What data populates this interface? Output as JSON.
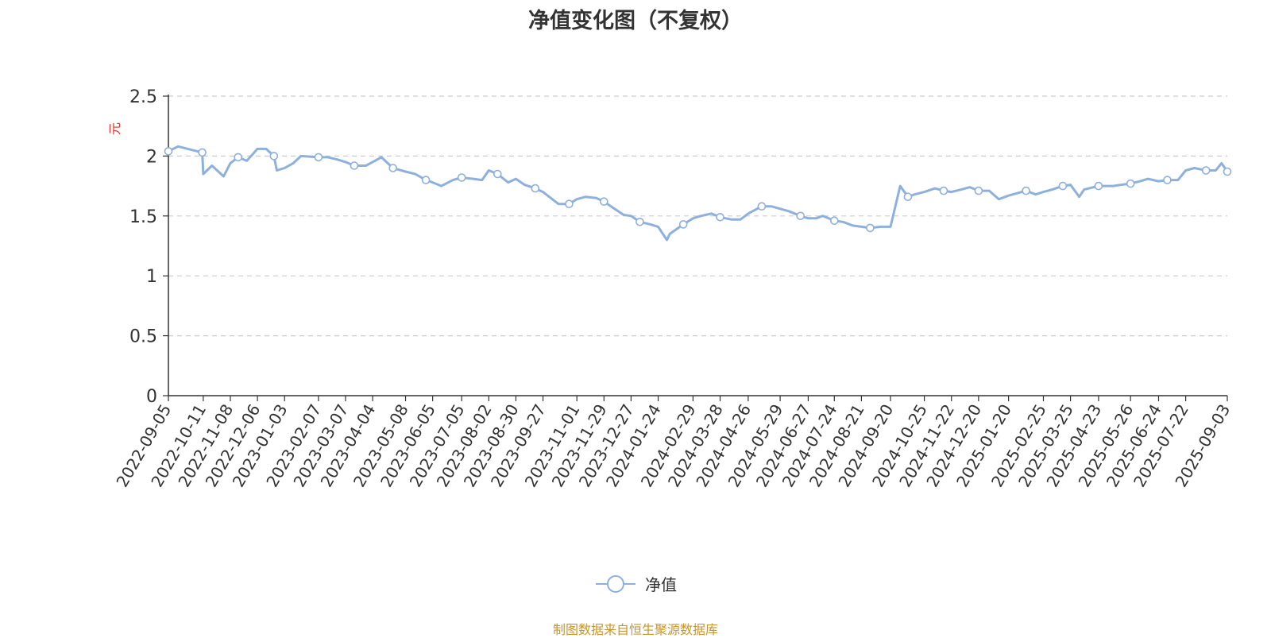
{
  "chart_data": {
    "type": "line",
    "title": "净值变化图（不复权）",
    "ylabel": "元",
    "xlabel": "",
    "ylim": [
      0,
      2.5
    ],
    "yticks": [
      "0",
      "0.5",
      "1",
      "1.5",
      "2",
      "2.5"
    ],
    "grid": "horizontal dashed",
    "legend_position": "bottom",
    "x_tick_labels": [
      "2022-09-05",
      "2022-10-11",
      "2022-11-08",
      "2022-12-06",
      "2023-01-03",
      "2023-02-07",
      "2023-03-07",
      "2023-04-04",
      "2023-05-08",
      "2023-06-05",
      "2023-07-05",
      "2023-08-02",
      "2023-08-30",
      "2023-09-27",
      "2023-11-01",
      "2023-11-29",
      "2023-12-27",
      "2024-01-24",
      "2024-02-29",
      "2024-03-28",
      "2024-04-26",
      "2024-05-29",
      "2024-06-27",
      "2024-07-24",
      "2024-08-21",
      "2024-09-20",
      "2024-10-25",
      "2024-11-22",
      "2024-12-20",
      "2025-01-20",
      "2025-02-25",
      "2025-03-25",
      "2025-04-23",
      "2025-05-26",
      "2025-06-24",
      "2025-07-22",
      "2025-09-03"
    ],
    "series": [
      {
        "name": "净值",
        "color": "#8eb0dc",
        "x": [
          "2022-09-05",
          "2022-09-15",
          "2022-09-30",
          "2022-10-10",
          "2022-10-11",
          "2022-10-20",
          "2022-10-28",
          "2022-11-01",
          "2022-11-08",
          "2022-11-16",
          "2022-11-25",
          "2022-12-06",
          "2022-12-15",
          "2022-12-23",
          "2022-12-26",
          "2023-01-03",
          "2023-01-12",
          "2023-01-20",
          "2023-02-07",
          "2023-02-17",
          "2023-02-27",
          "2023-03-07",
          "2023-03-16",
          "2023-03-28",
          "2023-04-04",
          "2023-04-13",
          "2023-04-25",
          "2023-05-08",
          "2023-05-18",
          "2023-05-29",
          "2023-06-05",
          "2023-06-14",
          "2023-06-26",
          "2023-07-05",
          "2023-07-17",
          "2023-07-26",
          "2023-08-02",
          "2023-08-11",
          "2023-08-22",
          "2023-08-30",
          "2023-09-08",
          "2023-09-19",
          "2023-09-27",
          "2023-10-13",
          "2023-10-24",
          "2023-11-01",
          "2023-11-10",
          "2023-11-21",
          "2023-11-29",
          "2023-12-08",
          "2023-12-19",
          "2023-12-27",
          "2024-01-05",
          "2024-01-16",
          "2024-01-24",
          "2024-02-02",
          "2024-02-05",
          "2024-02-19",
          "2024-02-29",
          "2024-03-08",
          "2024-03-19",
          "2024-03-28",
          "2024-04-09",
          "2024-04-18",
          "2024-04-26",
          "2024-05-10",
          "2024-05-20",
          "2024-05-29",
          "2024-06-07",
          "2024-06-19",
          "2024-06-27",
          "2024-07-05",
          "2024-07-12",
          "2024-07-24",
          "2024-08-02",
          "2024-08-12",
          "2024-08-21",
          "2024-08-30",
          "2024-09-10",
          "2024-09-20",
          "2024-09-30",
          "2024-10-08",
          "2024-10-15",
          "2024-10-25",
          "2024-11-05",
          "2024-11-14",
          "2024-11-22",
          "2024-12-02",
          "2024-12-11",
          "2024-12-20",
          "2024-12-31",
          "2025-01-10",
          "2025-01-20",
          "2025-02-07",
          "2025-02-17",
          "2025-02-25",
          "2025-03-06",
          "2025-03-17",
          "2025-03-25",
          "2025-04-03",
          "2025-04-08",
          "2025-04-23",
          "2025-05-08",
          "2025-05-16",
          "2025-05-26",
          "2025-06-05",
          "2025-06-13",
          "2025-06-24",
          "2025-07-03",
          "2025-07-14",
          "2025-07-22",
          "2025-07-31",
          "2025-08-12",
          "2025-08-22",
          "2025-08-28",
          "2025-09-03"
        ],
        "values": [
          2.04,
          2.08,
          2.05,
          2.03,
          1.85,
          1.92,
          1.86,
          1.83,
          1.94,
          1.99,
          1.96,
          2.06,
          2.06,
          2.0,
          1.88,
          1.9,
          1.94,
          2.0,
          1.99,
          1.99,
          1.97,
          1.95,
          1.92,
          1.92,
          1.95,
          1.99,
          1.9,
          1.87,
          1.85,
          1.8,
          1.78,
          1.75,
          1.8,
          1.82,
          1.81,
          1.8,
          1.88,
          1.85,
          1.78,
          1.81,
          1.76,
          1.73,
          1.7,
          1.6,
          1.6,
          1.64,
          1.66,
          1.65,
          1.62,
          1.57,
          1.51,
          1.5,
          1.45,
          1.43,
          1.41,
          1.3,
          1.35,
          1.43,
          1.48,
          1.5,
          1.52,
          1.49,
          1.47,
          1.47,
          1.52,
          1.58,
          1.58,
          1.56,
          1.54,
          1.5,
          1.48,
          1.48,
          1.5,
          1.46,
          1.45,
          1.42,
          1.41,
          1.4,
          1.41,
          1.41,
          1.75,
          1.66,
          1.68,
          1.7,
          1.73,
          1.71,
          1.7,
          1.72,
          1.74,
          1.71,
          1.71,
          1.64,
          1.67,
          1.71,
          1.68,
          1.7,
          1.72,
          1.75,
          1.76,
          1.66,
          1.72,
          1.75,
          1.75,
          1.76,
          1.77,
          1.79,
          1.81,
          1.79,
          1.8,
          1.8,
          1.88,
          1.9,
          1.88,
          1.88,
          1.94,
          1.87
        ]
      }
    ]
  },
  "legend": {
    "label": "净值"
  },
  "source_note": "制图数据来自恒生聚源数据库"
}
